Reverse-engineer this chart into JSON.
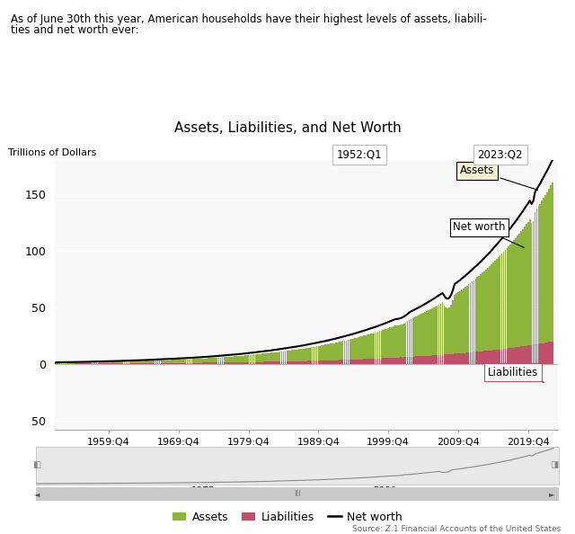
{
  "title": "Assets, Liabilities, and Net Worth",
  "subtitle_line1": "As of June 30th this year, American households have their highest levels of assets, liabili-",
  "subtitle_line2": "ties and net worth ever:",
  "ylabel": "Trillions of Dollars",
  "source": "Source: Z.1 Financial Accounts of the United States",
  "date_start": "1952:Q1",
  "date_end": "2023:Q2",
  "xtick_labels": [
    "1959:Q4",
    "1969:Q4",
    "1979:Q4",
    "1989:Q4",
    "1999:Q4",
    "2009:Q4",
    "2019:Q4"
  ],
  "xtick_years": [
    1959.75,
    1969.75,
    1979.75,
    1989.75,
    1999.75,
    2009.75,
    2019.75
  ],
  "ytick_vals": [
    150,
    100,
    50,
    0,
    -50
  ],
  "ytick_labels": [
    "150",
    "100",
    "50",
    "0",
    "50"
  ],
  "ylim_top": 180,
  "ylim_bottom": -58,
  "assets_color": "#8db53b",
  "liabilities_color": "#c0506a",
  "net_worth_color": "#000000",
  "background_color": "#ffffff",
  "plot_bg_color": "#f8f8f8",
  "annotation_assets": "Assets",
  "annotation_networth": "Net worth",
  "annotation_liabilities": "Liabilities"
}
